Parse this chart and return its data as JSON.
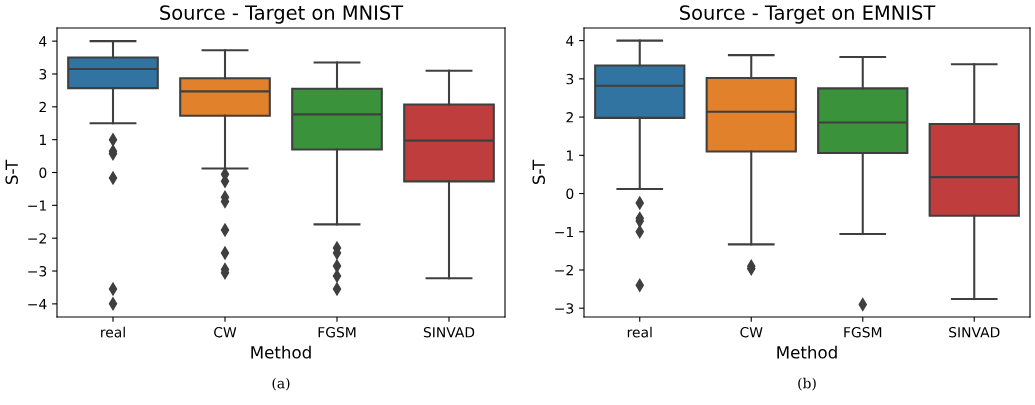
{
  "chart_data": [
    {
      "type": "box",
      "title": "Source - Target on MNIST",
      "xlabel": "Method",
      "ylabel": "S-T",
      "categories": [
        "real",
        "CW",
        "FGSM",
        "SINVAD"
      ],
      "colors": [
        "#3274a1",
        "#e1812c",
        "#3a923a",
        "#c03d3e"
      ],
      "ylim": [
        -4.4,
        4.4
      ],
      "yticks": [
        {
          "value": -4,
          "label": "−4"
        },
        {
          "value": -3,
          "label": "−3"
        },
        {
          "value": -2,
          "label": "−2"
        },
        {
          "value": -1,
          "label": "−1"
        },
        0,
        1,
        2,
        3,
        4
      ],
      "marker": "diamond",
      "grid": false,
      "annotations": [
        "(a)"
      ],
      "boxes": [
        {
          "low": 1.5,
          "q1": 2.57,
          "median": 3.15,
          "q3": 3.5,
          "high": 4.0,
          "outliers": [
            1.0,
            0.65,
            0.57,
            -0.17,
            -3.55,
            -4.0
          ]
        },
        {
          "low": 0.12,
          "q1": 1.73,
          "median": 2.47,
          "q3": 2.87,
          "high": 3.72,
          "outliers": [
            -0.05,
            -0.27,
            -0.75,
            -0.88,
            -1.75,
            -2.45,
            -2.95,
            -3.05
          ]
        },
        {
          "low": -1.58,
          "q1": 0.7,
          "median": 1.77,
          "q3": 2.55,
          "high": 3.35,
          "outliers": [
            -2.3,
            -2.45,
            -2.85,
            -3.15,
            -3.55
          ]
        },
        {
          "low": -3.22,
          "q1": -0.27,
          "median": 0.97,
          "q3": 2.07,
          "high": 3.1
        }
      ]
    },
    {
      "type": "box",
      "title": "Source - Target on EMNIST",
      "xlabel": "Method",
      "ylabel": "S-T",
      "categories": [
        "real",
        "CW",
        "FGSM",
        "SINVAD"
      ],
      "colors": [
        "#3274a1",
        "#e1812c",
        "#3a923a",
        "#c03d3e"
      ],
      "ylim": [
        -3.23,
        4.33
      ],
      "yticks": [
        {
          "value": -3,
          "label": "−3"
        },
        {
          "value": -2,
          "label": "−2"
        },
        {
          "value": -1,
          "label": "−1"
        },
        0,
        1,
        2,
        3,
        4
      ],
      "marker": "diamond",
      "grid": false,
      "annotations": [
        "(b)"
      ],
      "boxes": [
        {
          "low": 0.12,
          "q1": 1.98,
          "median": 2.82,
          "q3": 3.35,
          "high": 4.0,
          "outliers": [
            -0.25,
            -0.65,
            -0.72,
            -1.0,
            -2.4
          ]
        },
        {
          "low": -1.33,
          "q1": 1.1,
          "median": 2.14,
          "q3": 3.02,
          "high": 3.62,
          "outliers": [
            -1.9,
            -1.97
          ]
        },
        {
          "low": -1.06,
          "q1": 1.06,
          "median": 1.86,
          "q3": 2.75,
          "high": 3.57,
          "outliers": [
            -2.9
          ]
        },
        {
          "low": -2.76,
          "q1": -0.58,
          "median": 0.43,
          "q3": 1.82,
          "high": 3.38
        }
      ]
    }
  ]
}
